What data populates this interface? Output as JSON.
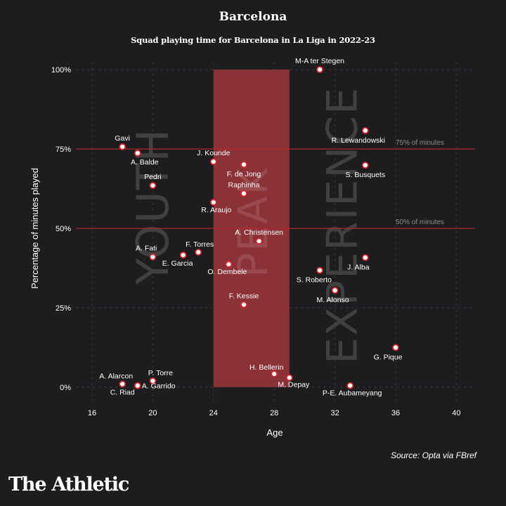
{
  "header": {
    "title": "Barcelona",
    "subtitle": "Squad playing time for Barcelona in La Liga in 2022-23"
  },
  "footer": {
    "source": "Source: Opta via FBref",
    "brand": "The Athletic"
  },
  "colors": {
    "background": "#1d1c1f",
    "peak_band": "#8b3236",
    "reference_line": "#b0282e",
    "point_fill": "#ffffff",
    "point_stroke": "#d9252b",
    "watermark": "#4a4a4c",
    "grid": "#3a393c",
    "reference_label": "#8c8c8c"
  },
  "chart_data": {
    "type": "scatter",
    "title": "Barcelona",
    "subtitle": "Squad playing time for Barcelona in La Liga in 2022-23",
    "xlabel": "Age",
    "ylabel": "Percentage of minutes played",
    "xlim": [
      14.6,
      41.2
    ],
    "ylim": [
      0,
      100
    ],
    "x_ticks": [
      16,
      20,
      24,
      28,
      32,
      36,
      40
    ],
    "x_tick_labels": [
      "16",
      "20",
      "24",
      "28",
      "32",
      "36",
      "40"
    ],
    "y_ticks": [
      0,
      25,
      50,
      75,
      100
    ],
    "y_tick_labels": [
      "0%",
      "25%",
      "50%",
      "75%",
      "100%"
    ],
    "grid": true,
    "reference_lines": [
      {
        "y": 75,
        "label": "75% of minutes"
      },
      {
        "y": 50,
        "label": "50% of minutes"
      }
    ],
    "bands": [
      {
        "label": "PEAK",
        "x_from": 24,
        "x_to": 29
      }
    ],
    "zone_labels": [
      {
        "label": "YOUTH",
        "x": 20,
        "y_center": 57
      },
      {
        "label": "PEAK",
        "x": 26.6,
        "y_center": 52
      },
      {
        "label": "EXPERIENCE",
        "x": 32.5,
        "y_center": 51
      }
    ],
    "points": [
      {
        "name": "M-A ter Stegen",
        "age": 31,
        "pct": 100,
        "label_pos": "above"
      },
      {
        "name": "R. Lewandowski",
        "age": 34,
        "pct": 80.8,
        "label_pos": "below"
      },
      {
        "name": "Gavi",
        "age": 18,
        "pct": 75.7,
        "label_pos": "above"
      },
      {
        "name": "A. Balde",
        "age": 19,
        "pct": 73.7,
        "label_pos": "below"
      },
      {
        "name": "J. Kounde",
        "age": 24,
        "pct": 71.0,
        "label_pos": "above"
      },
      {
        "name": "F. de Jong",
        "age": 26,
        "pct": 70.1,
        "label_pos": "below"
      },
      {
        "name": "S. Busquets",
        "age": 34,
        "pct": 69.9,
        "label_pos": "below"
      },
      {
        "name": "Pedri",
        "age": 20,
        "pct": 63.5,
        "label_pos": "above"
      },
      {
        "name": "Raphinha",
        "age": 26,
        "pct": 61.0,
        "label_pos": "above"
      },
      {
        "name": "R. Araujo",
        "age": 24,
        "pct": 58.2,
        "label_pos": "below"
      },
      {
        "name": "A. Christensen",
        "age": 27,
        "pct": 46.0,
        "label_pos": "above"
      },
      {
        "name": "F. Torres",
        "age": 23,
        "pct": 42.5,
        "label_pos": "above"
      },
      {
        "name": "E. Garcia",
        "age": 22,
        "pct": 41.6,
        "label_pos": "below"
      },
      {
        "name": "A. Fati",
        "age": 20,
        "pct": 41.0,
        "label_pos": "above-left"
      },
      {
        "name": "J. Alba",
        "age": 34,
        "pct": 40.8,
        "label_pos": "below"
      },
      {
        "name": "O. Dembele",
        "age": 25,
        "pct": 38.7,
        "label_pos": "below"
      },
      {
        "name": "S. Roberto",
        "age": 31,
        "pct": 36.8,
        "label_pos": "below-left"
      },
      {
        "name": "M. Alonso",
        "age": 32,
        "pct": 30.5,
        "label_pos": "below"
      },
      {
        "name": "F. Kessie",
        "age": 26,
        "pct": 26.0,
        "label_pos": "above"
      },
      {
        "name": "G. Pique",
        "age": 36,
        "pct": 12.5,
        "label_pos": "below"
      },
      {
        "name": "H. Bellerin",
        "age": 28,
        "pct": 4.2,
        "label_pos": "above"
      },
      {
        "name": "M. Depay",
        "age": 29,
        "pct": 3.0,
        "label_pos": "below"
      },
      {
        "name": "P. Torre",
        "age": 20,
        "pct": 2.0,
        "label_pos": "above"
      },
      {
        "name": "A. Alarcon",
        "age": 18,
        "pct": 1.0,
        "label_pos": "above-left"
      },
      {
        "name": "C. Riad",
        "age": 18,
        "pct": 1.0,
        "label_pos": "below"
      },
      {
        "name": "A. Garrido",
        "age": 19,
        "pct": 0.5,
        "label_pos": "right"
      },
      {
        "name": "P-E. Aubameyang",
        "age": 33,
        "pct": 0.5,
        "label_pos": "below"
      }
    ]
  }
}
